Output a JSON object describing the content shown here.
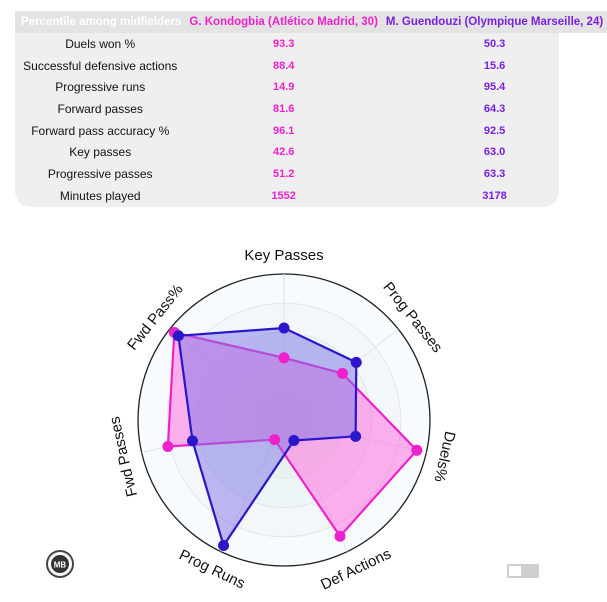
{
  "table": {
    "header_metric": "Percentile among midfielders",
    "header_a": "G. Kondogbia (Atlético Madrid, 30)",
    "header_b": "M. Guendouzi (Olympique Marseille, 24)",
    "rows": [
      {
        "metric": "Duels won %",
        "a": "93.3",
        "b": "50.3"
      },
      {
        "metric": "Successful defensive actions",
        "a": "88.4",
        "b": "15.6"
      },
      {
        "metric": "Progressive runs",
        "a": "14.9",
        "b": "95.4"
      },
      {
        "metric": "Forward passes",
        "a": "81.6",
        "b": "64.3"
      },
      {
        "metric": "Forward pass accuracy %",
        "a": "96.1",
        "b": "92.5"
      },
      {
        "metric": "Key passes",
        "a": "42.6",
        "b": "63.0"
      },
      {
        "metric": "Progressive passes",
        "a": "51.2",
        "b": "63.3"
      },
      {
        "metric": "Minutes played",
        "a": "1552",
        "b": "3178"
      }
    ]
  },
  "chart_data": {
    "type": "radar",
    "axes": [
      "Key Passes",
      "Prog Passes",
      "Duels%",
      "Def Actions",
      "Prog Runs",
      "Fwd Passes",
      "Fwd Pass%"
    ],
    "rmax": 100,
    "series": [
      {
        "name": "G. Kondogbia (Atlético Madrid, 30)",
        "color": "#ee22cc",
        "fill": "#ff66dd",
        "values": [
          42.6,
          51.2,
          93.3,
          88.4,
          14.9,
          81.6,
          96.1
        ]
      },
      {
        "name": "M. Guendouzi (Olympique Marseille, 24)",
        "color": "#2a17c9",
        "fill": "#7f74e6",
        "values": [
          63.0,
          63.3,
          50.3,
          15.6,
          95.4,
          64.3,
          92.5
        ]
      }
    ]
  },
  "logo": {
    "text": "MB"
  }
}
